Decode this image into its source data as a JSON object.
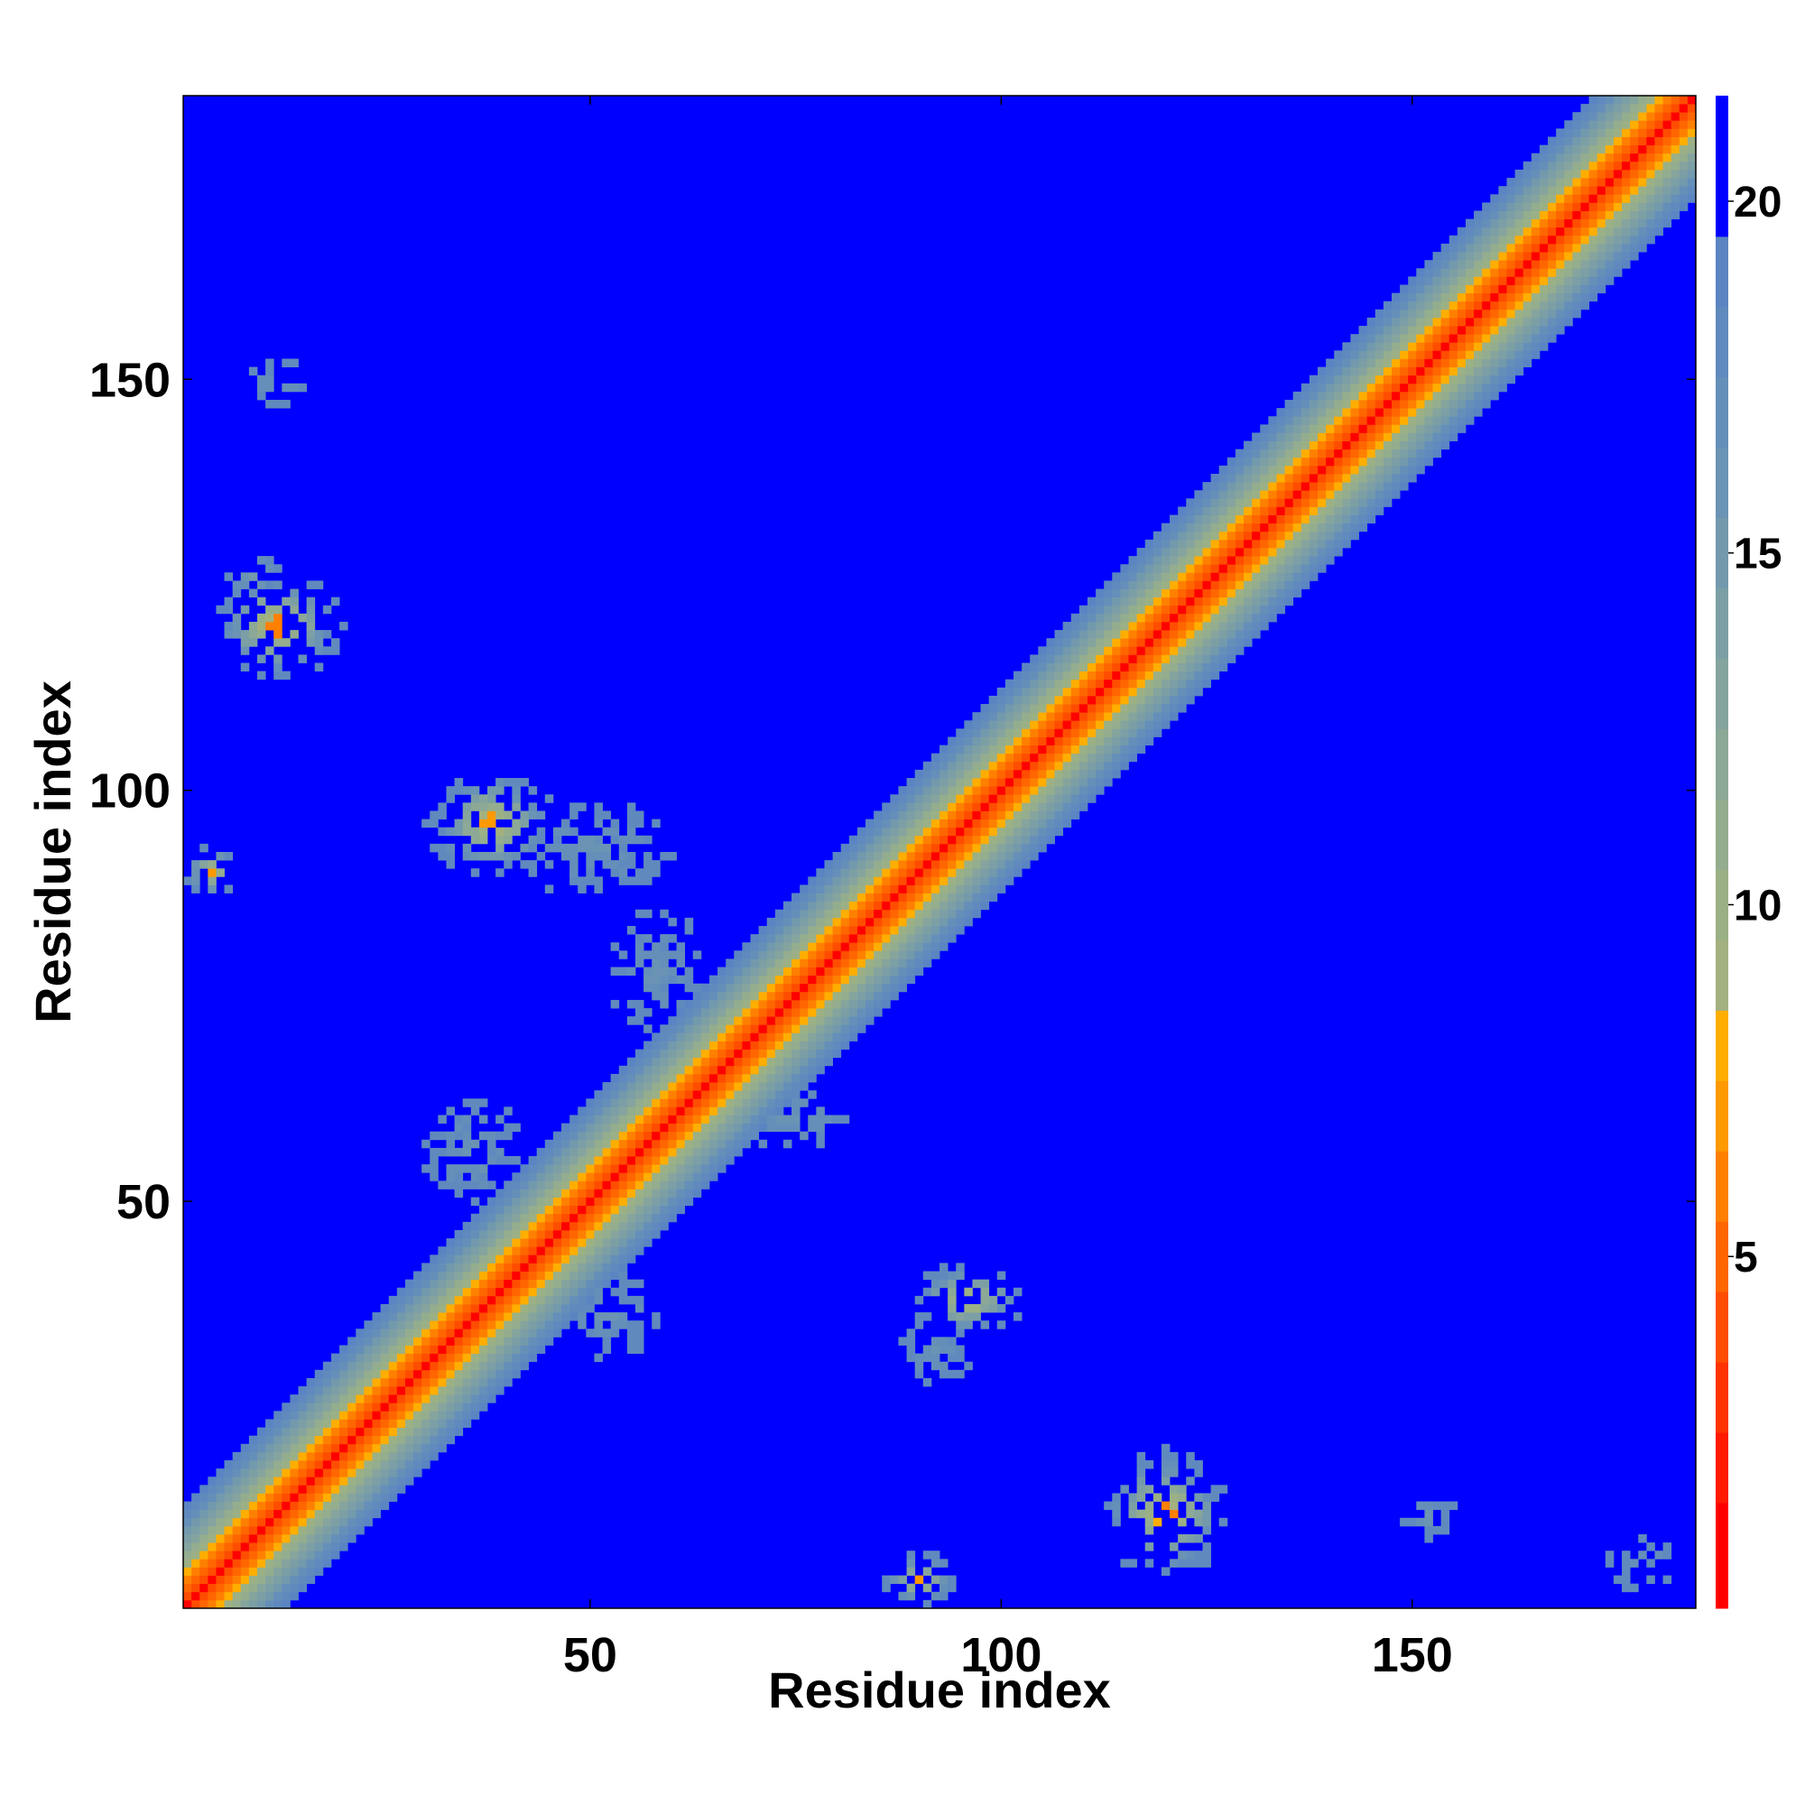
{
  "chart_data": {
    "type": "heatmap",
    "title": "",
    "xlabel": "Residue index",
    "ylabel": "Residue index",
    "n_residues": 184,
    "xlim": [
      0.5,
      184.5
    ],
    "ylim": [
      0.5,
      184.5
    ],
    "x_ticks": [
      50,
      100,
      150
    ],
    "y_ticks": [
      50,
      100,
      150
    ],
    "colorbar": {
      "ticks": [
        5,
        10,
        15,
        20
      ],
      "range": [
        0,
        21.5
      ],
      "levels": [
        {
          "max": 1.5,
          "color": "#ff0000"
        },
        {
          "max": 2.5,
          "color": "#ff1a00"
        },
        {
          "max": 3.5,
          "color": "#ff3300"
        },
        {
          "max": 4.5,
          "color": "#ff4d00"
        },
        {
          "max": 5.5,
          "color": "#ff6600"
        },
        {
          "max": 6.5,
          "color": "#ff8000"
        },
        {
          "max": 7.5,
          "color": "#ff9900"
        },
        {
          "max": 8.5,
          "color": "#ffae00"
        },
        {
          "max": 9.5,
          "color": "#a3b07f"
        },
        {
          "max": 10.5,
          "color": "#9bb085"
        },
        {
          "max": 11.5,
          "color": "#94ad8e"
        },
        {
          "max": 12.5,
          "color": "#8ca896"
        },
        {
          "max": 13.5,
          "color": "#85a49e"
        },
        {
          "max": 14.5,
          "color": "#7c9fa5"
        },
        {
          "max": 15.5,
          "color": "#7399ad"
        },
        {
          "max": 16.5,
          "color": "#6b93b4"
        },
        {
          "max": 17.5,
          "color": "#658fb9"
        },
        {
          "max": 18.5,
          "color": "#608abd"
        },
        {
          "max": 19.5,
          "color": "#5a85c2"
        },
        {
          "max": 21.5,
          "color": "#0000ff"
        }
      ]
    },
    "background_value": 21,
    "diagonal_band": {
      "profile_by_offset": [
        1,
        3.8,
        5.5,
        6.5,
        8.2,
        9.7,
        11.2,
        12.6,
        14,
        15.3,
        16.6,
        17.8,
        19
      ],
      "note": "distance vs |i-j|"
    },
    "contact_blobs": [
      {
        "i": 12,
        "j": 120,
        "ri": 7,
        "rj": 6,
        "core": 5.8
      },
      {
        "i": 9,
        "j": 126,
        "ri": 3,
        "rj": 3,
        "core": 15
      },
      {
        "i": 4,
        "j": 90,
        "ri": 3,
        "rj": 3,
        "core": 7
      },
      {
        "i": 38,
        "j": 96,
        "ri": 7,
        "rj": 6,
        "core": 7
      },
      {
        "i": 50,
        "j": 93,
        "ri": 9,
        "rj": 5,
        "core": 16
      },
      {
        "i": 58,
        "j": 78,
        "ri": 5,
        "rj": 8,
        "core": 16
      },
      {
        "i": 74,
        "j": 60,
        "ri": 7,
        "rj": 4,
        "core": 16
      },
      {
        "i": 36,
        "j": 56,
        "ri": 6,
        "rj": 6,
        "core": 16
      },
      {
        "i": 52,
        "j": 36,
        "ri": 6,
        "rj": 5,
        "core": 16
      },
      {
        "i": 96,
        "j": 38,
        "ri": 6,
        "rj": 4,
        "core": 7
      },
      {
        "i": 92,
        "j": 32,
        "ri": 4,
        "rj": 4,
        "core": 16
      },
      {
        "i": 120,
        "j": 12,
        "ri": 7,
        "rj": 7,
        "core": 5.8
      },
      {
        "i": 90,
        "j": 4,
        "ri": 4,
        "rj": 3,
        "core": 7
      },
      {
        "i": 152,
        "j": 12,
        "ri": 3,
        "rj": 3,
        "core": 16
      },
      {
        "i": 12,
        "j": 150,
        "ri": 3,
        "rj": 3,
        "core": 16
      },
      {
        "i": 178,
        "j": 6,
        "ri": 5,
        "rj": 3,
        "core": 17
      }
    ]
  }
}
